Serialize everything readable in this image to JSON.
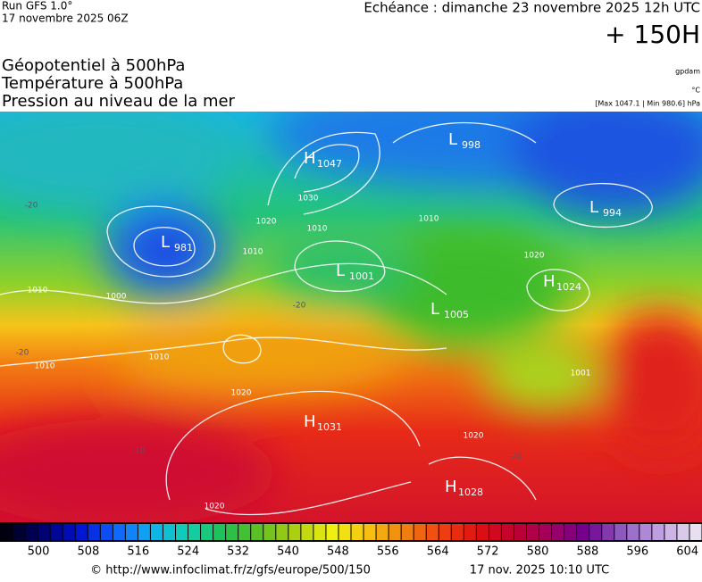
{
  "header": {
    "run": "Run GFS 1.0°",
    "date": "17 novembre 2025 06Z",
    "valid": "Echéance : dimanche 23 novembre 2025 12h UTC",
    "lead": "+ 150H"
  },
  "titles": [
    "Géopotentiel à 500hPa",
    "Température à 500hPa",
    "Pression au niveau de la mer"
  ],
  "units": {
    "height": "gpdam",
    "temperature": "°C",
    "range": "[Max 1047.1 | Min 980.6] hPa"
  },
  "centers": [
    {
      "type": "H",
      "value": "1047"
    },
    {
      "type": "L",
      "value": "981"
    },
    {
      "type": "L",
      "value": "998"
    },
    {
      "type": "L",
      "value": "994"
    },
    {
      "type": "L",
      "value": "1001"
    },
    {
      "type": "H",
      "value": "1024"
    },
    {
      "type": "L",
      "value": "1005"
    },
    {
      "type": "H",
      "value": "1031"
    },
    {
      "type": "H",
      "value": "1028"
    }
  ],
  "isobar_labels": [
    "1030",
    "1020",
    "1010",
    "1010",
    "1010",
    "1010",
    "1010",
    "1020",
    "1020",
    "1020",
    "1010",
    "1020",
    "1001",
    "1000"
  ],
  "temperature_labels": [
    "-20",
    "-20",
    "-20",
    "-20",
    "-10"
  ],
  "scale": {
    "labels": [
      "500",
      "508",
      "516",
      "524",
      "532",
      "540",
      "548",
      "556",
      "564",
      "572",
      "580",
      "588",
      "596",
      "604"
    ]
  },
  "footer": {
    "url": "© http://www.infoclimat.fr/z/gfs/europe/500/150",
    "timestamp": "17 nov. 2025 10:10 UTC"
  }
}
